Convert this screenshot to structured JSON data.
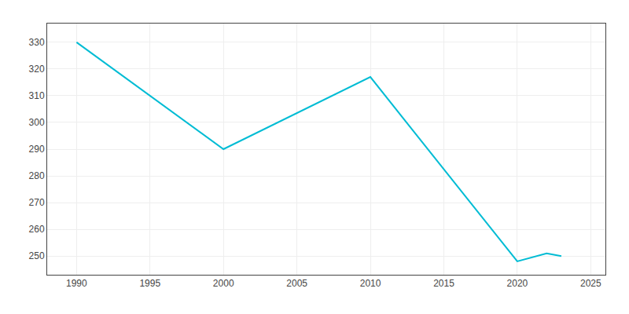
{
  "chart_data": {
    "type": "line",
    "x": [
      1990,
      2000,
      2010,
      2020,
      2022,
      2023
    ],
    "values": [
      330,
      290,
      317,
      248,
      251,
      250
    ],
    "color": "#00bcd4",
    "xlim": [
      1988,
      2026
    ],
    "ylim": [
      243,
      337
    ],
    "xticks": [
      1990,
      1995,
      2000,
      2005,
      2010,
      2015,
      2020,
      2025
    ],
    "yticks": [
      250,
      260,
      270,
      280,
      290,
      300,
      310,
      320,
      330
    ],
    "grid": true
  }
}
